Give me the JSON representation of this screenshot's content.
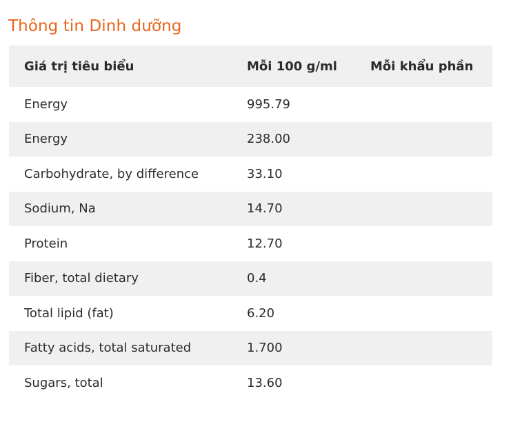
{
  "title": "Thông tin Dinh dưỡng",
  "table": {
    "headers": [
      "Giá trị tiêu biểu",
      "Mỗi 100 g/ml",
      "Mỗi khẩu phần"
    ],
    "rows": [
      {
        "name": "Energy",
        "per100": "995.79",
        "perServing": ""
      },
      {
        "name": "Energy",
        "per100": "238.00",
        "perServing": ""
      },
      {
        "name": "Carbohydrate, by difference",
        "per100": "33.10",
        "perServing": ""
      },
      {
        "name": "Sodium, Na",
        "per100": "14.70",
        "perServing": ""
      },
      {
        "name": "Protein",
        "per100": "12.70",
        "perServing": ""
      },
      {
        "name": "Fiber, total dietary",
        "per100": "0.4",
        "perServing": ""
      },
      {
        "name": "Total lipid (fat)",
        "per100": "6.20",
        "perServing": ""
      },
      {
        "name": "Fatty acids, total saturated",
        "per100": "1.700",
        "perServing": ""
      },
      {
        "name": "Sugars, total",
        "per100": "13.60",
        "perServing": ""
      }
    ]
  },
  "colors": {
    "title": "#e8641c",
    "row_shade": "#f0f0f0",
    "text": "#2b2b2b"
  }
}
